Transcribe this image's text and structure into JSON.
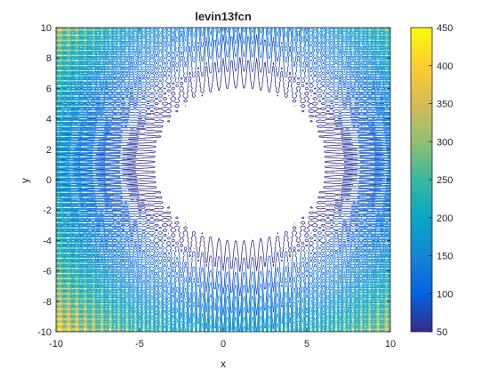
{
  "chart_data": {
    "type": "contour",
    "title": "levin13fcn",
    "xlabel": "x",
    "ylabel": "y",
    "xlim": [
      -10,
      10
    ],
    "ylim": [
      -10,
      10
    ],
    "xticks": [
      -10,
      -5,
      0,
      5,
      10
    ],
    "yticks": [
      -10,
      -8,
      -6,
      -4,
      -2,
      0,
      2,
      4,
      6,
      8,
      10
    ],
    "colorbar": {
      "ticks": [
        50,
        100,
        150,
        200,
        250,
        300,
        350,
        400,
        450
      ],
      "range": [
        50,
        450
      ],
      "colormap": "parula"
    },
    "function": "sin(3*pi*x)^2 + (x-1)^2*(1+sin(3*pi*y)^2) + (y-1)^2*(1+sin(2*pi*x)^2)",
    "level_range": [
      50,
      450
    ],
    "level_step": 25,
    "grid": false,
    "legend": "colorbar-right"
  },
  "colors": {
    "parula_stops": [
      "#352A87",
      "#0363E1",
      "#1485D4",
      "#06A7C6",
      "#38B99E",
      "#92BF73",
      "#D9BA56",
      "#FCCE2E",
      "#F9FB0E"
    ]
  }
}
